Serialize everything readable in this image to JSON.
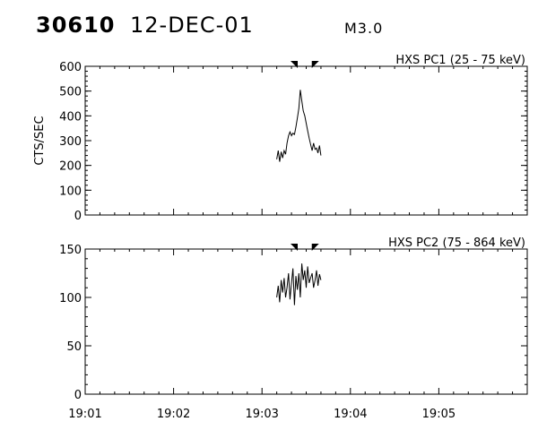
{
  "header": {
    "event_id": "30610",
    "date": "12-DEC-01",
    "flare_class": "M3.0"
  },
  "chart_data": [
    {
      "type": "line",
      "title": "HXS PC1 (25 - 75 keV)",
      "ylabel": "CTS/SEC",
      "xlabel": "",
      "xlim": [
        "19:01",
        "19:06"
      ],
      "ylim": [
        0,
        600
      ],
      "yticks": [
        0,
        100,
        200,
        300,
        400,
        500,
        600
      ],
      "xticks": [],
      "grid": false,
      "legend": "none",
      "markers": [
        "19:03:23",
        "19:03:35"
      ],
      "series": [
        {
          "x": [
            "19:03:10",
            "19:03:11",
            "19:03:12",
            "19:03:13",
            "19:03:14",
            "19:03:15",
            "19:03:16",
            "19:03:17",
            "19:03:18",
            "19:03:19",
            "19:03:20",
            "19:03:21",
            "19:03:22",
            "19:03:23",
            "19:03:24",
            "19:03:25",
            "19:03:26",
            "19:03:27",
            "19:03:28",
            "19:03:29",
            "19:03:30",
            "19:03:31",
            "19:03:32",
            "19:03:33",
            "19:03:34",
            "19:03:35",
            "19:03:36",
            "19:03:37",
            "19:03:38",
            "19:03:39",
            "19:03:40"
          ],
          "values": [
            225,
            260,
            215,
            255,
            230,
            260,
            245,
            290,
            320,
            335,
            320,
            330,
            325,
            355,
            390,
            430,
            505,
            460,
            420,
            400,
            370,
            340,
            310,
            285,
            260,
            290,
            265,
            270,
            250,
            280,
            240
          ]
        }
      ]
    },
    {
      "type": "line",
      "title": "HXS PC2 (75 - 864 keV)",
      "ylabel": "",
      "xlabel": "",
      "xlim": [
        "19:01",
        "19:06"
      ],
      "ylim": [
        0,
        150
      ],
      "yticks": [
        0,
        50,
        100,
        150
      ],
      "xticks": [
        "19:01",
        "19:02",
        "19:03",
        "19:04",
        "19:05"
      ],
      "grid": false,
      "legend": "none",
      "markers": [
        "19:03:23",
        "19:03:35"
      ],
      "series": [
        {
          "x": [
            "19:03:10",
            "19:03:11",
            "19:03:12",
            "19:03:13",
            "19:03:14",
            "19:03:15",
            "19:03:16",
            "19:03:17",
            "19:03:18",
            "19:03:19",
            "19:03:20",
            "19:03:21",
            "19:03:22",
            "19:03:23",
            "19:03:24",
            "19:03:25",
            "19:03:26",
            "19:03:27",
            "19:03:28",
            "19:03:29",
            "19:03:30",
            "19:03:31",
            "19:03:32",
            "19:03:33",
            "19:03:34",
            "19:03:35",
            "19:03:36",
            "19:03:37",
            "19:03:38",
            "19:03:39",
            "19:03:40"
          ],
          "values": [
            100,
            112,
            95,
            118,
            105,
            120,
            100,
            110,
            125,
            98,
            115,
            130,
            92,
            122,
            108,
            125,
            100,
            135,
            118,
            128,
            110,
            132,
            115,
            120,
            125,
            110,
            118,
            128,
            112,
            124,
            118
          ]
        }
      ]
    }
  ]
}
